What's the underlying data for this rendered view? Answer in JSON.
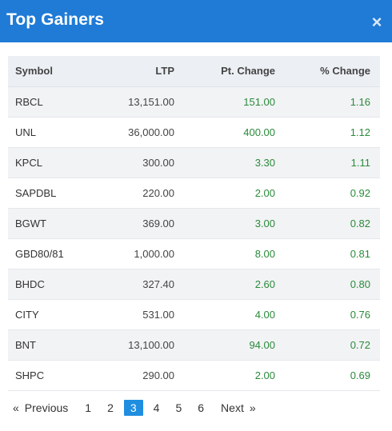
{
  "header": {
    "title": "Top Gainers",
    "close_icon": "×"
  },
  "table": {
    "columns": [
      "Symbol",
      "LTP",
      "Pt. Change",
      "% Change"
    ],
    "rows": [
      {
        "symbol": "RBCL",
        "ltp": "13,151.00",
        "pt_change": "151.00",
        "pct_change": "1.16"
      },
      {
        "symbol": "UNL",
        "ltp": "36,000.00",
        "pt_change": "400.00",
        "pct_change": "1.12"
      },
      {
        "symbol": "KPCL",
        "ltp": "300.00",
        "pt_change": "3.30",
        "pct_change": "1.11"
      },
      {
        "symbol": "SAPDBL",
        "ltp": "220.00",
        "pt_change": "2.00",
        "pct_change": "0.92"
      },
      {
        "symbol": "BGWT",
        "ltp": "369.00",
        "pt_change": "3.00",
        "pct_change": "0.82"
      },
      {
        "symbol": "GBD80/81",
        "ltp": "1,000.00",
        "pt_change": "8.00",
        "pct_change": "0.81"
      },
      {
        "symbol": "BHDC",
        "ltp": "327.40",
        "pt_change": "2.60",
        "pct_change": "0.80"
      },
      {
        "symbol": "CITY",
        "ltp": "531.00",
        "pt_change": "4.00",
        "pct_change": "0.76"
      },
      {
        "symbol": "BNT",
        "ltp": "13,100.00",
        "pt_change": "94.00",
        "pct_change": "0.72"
      },
      {
        "symbol": "SHPC",
        "ltp": "290.00",
        "pt_change": "2.00",
        "pct_change": "0.69"
      }
    ]
  },
  "pagination": {
    "prev_arrow": "«",
    "prev_label": "Previous",
    "pages": [
      "1",
      "2",
      "3",
      "4",
      "5",
      "6"
    ],
    "active_page": "3",
    "next_label": "Next",
    "next_arrow": "»"
  },
  "colors": {
    "header_bg": "#1f7bd6",
    "positive": "#2a8a3a",
    "active_page_bg": "#1f8ee0"
  }
}
